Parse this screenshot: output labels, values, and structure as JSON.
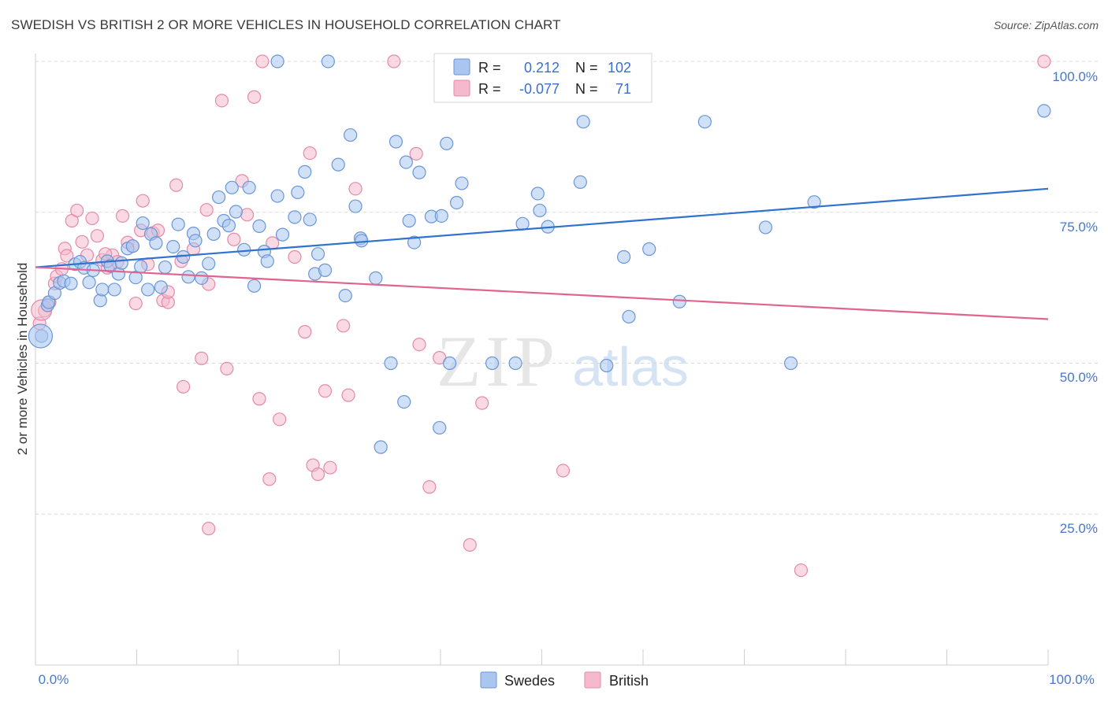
{
  "title": "SWEDISH VS BRITISH 2 OR MORE VEHICLES IN HOUSEHOLD CORRELATION CHART",
  "source": "Source: ZipAtlas.com",
  "colors": {
    "swedes_fill": "#aac6ef",
    "swedes_stroke": "#6a96d8",
    "swedes_line": "#2f72d0",
    "british_fill": "#f4b9cc",
    "british_stroke": "#e58aa8",
    "british_line": "#e0648f",
    "tick_color": "#4a78c9",
    "grid": "#d9d9d9"
  },
  "legend": {
    "r_label": "R =",
    "n_label": "N =",
    "swedes": {
      "r": "0.212",
      "n": "102"
    },
    "british": {
      "r": "-0.077",
      "n": "71"
    }
  },
  "bottom_legend": {
    "swedes": "Swedes",
    "british": "British"
  },
  "watermark": {
    "zip": "ZIP",
    "atlas": "atlas"
  },
  "chart_data": {
    "type": "scatter",
    "title": "SWEDISH VS BRITISH 2 OR MORE VEHICLES IN HOUSEHOLD CORRELATION CHART",
    "xlabel": "",
    "ylabel": "2 or more Vehicles in Household",
    "xlim": [
      0,
      100
    ],
    "ylim": [
      0,
      100
    ],
    "x_tick_labels": [
      "0.0%",
      "100.0%"
    ],
    "y_ticks": [
      25,
      50,
      75,
      100
    ],
    "y_tick_labels": [
      "25.0%",
      "50.0%",
      "75.0%",
      "100.0%"
    ],
    "grid": "horizontal dashed",
    "legend_position": "top-center",
    "series": [
      {
        "name": "Swedes",
        "r": 0.212,
        "n": 102,
        "trend": {
          "x": [
            0,
            100
          ],
          "y": [
            65.9,
            78.9
          ]
        },
        "points": [
          [
            0.6,
            54.5
          ],
          [
            1.2,
            59.6
          ],
          [
            1.3,
            60.1
          ],
          [
            1.9,
            61.6
          ],
          [
            2.4,
            63.3
          ],
          [
            2.8,
            63.6
          ],
          [
            3.5,
            63.2
          ],
          [
            3.9,
            66.4
          ],
          [
            4.4,
            66.8
          ],
          [
            4.8,
            65.8
          ],
          [
            5.3,
            63.4
          ],
          [
            5.7,
            65.4
          ],
          [
            6.4,
            60.4
          ],
          [
            6.6,
            62.2
          ],
          [
            7.1,
            66.9
          ],
          [
            7.4,
            66.1
          ],
          [
            7.8,
            62.2
          ],
          [
            8.2,
            64.8
          ],
          [
            8.5,
            66.6
          ],
          [
            9.1,
            69.0
          ],
          [
            9.6,
            69.4
          ],
          [
            9.9,
            64.2
          ],
          [
            10.4,
            66.0
          ],
          [
            10.6,
            73.2
          ],
          [
            11.1,
            62.2
          ],
          [
            11.4,
            71.4
          ],
          [
            11.9,
            69.9
          ],
          [
            12.4,
            62.6
          ],
          [
            12.8,
            65.9
          ],
          [
            13.6,
            69.3
          ],
          [
            14.1,
            73.0
          ],
          [
            14.6,
            67.6
          ],
          [
            15.1,
            64.3
          ],
          [
            15.6,
            71.5
          ],
          [
            15.8,
            70.3
          ],
          [
            16.4,
            64.1
          ],
          [
            17.1,
            66.5
          ],
          [
            17.6,
            71.4
          ],
          [
            18.1,
            77.5
          ],
          [
            18.6,
            73.6
          ],
          [
            19.1,
            72.8
          ],
          [
            19.4,
            79.1
          ],
          [
            19.8,
            75.1
          ],
          [
            20.6,
            68.8
          ],
          [
            21.1,
            79.1
          ],
          [
            21.6,
            62.8
          ],
          [
            22.1,
            72.7
          ],
          [
            22.6,
            68.5
          ],
          [
            22.9,
            66.9
          ],
          [
            23.9,
            77.7
          ],
          [
            24.4,
            71.3
          ],
          [
            25.6,
            74.2
          ],
          [
            25.9,
            78.3
          ],
          [
            26.6,
            81.7
          ],
          [
            27.1,
            73.8
          ],
          [
            27.6,
            64.8
          ],
          [
            27.9,
            68.1
          ],
          [
            28.6,
            65.4
          ],
          [
            29.9,
            82.9
          ],
          [
            30.6,
            61.2
          ],
          [
            31.1,
            87.8
          ],
          [
            31.6,
            76.0
          ],
          [
            32.1,
            70.7
          ],
          [
            32.2,
            70.3
          ],
          [
            33.6,
            64.1
          ],
          [
            34.1,
            36.1
          ],
          [
            35.1,
            50.0
          ],
          [
            35.6,
            86.7
          ],
          [
            36.4,
            43.6
          ],
          [
            36.6,
            83.3
          ],
          [
            36.9,
            73.6
          ],
          [
            37.4,
            70.0
          ],
          [
            37.9,
            81.6
          ],
          [
            39.1,
            74.3
          ],
          [
            39.9,
            39.3
          ],
          [
            40.1,
            74.4
          ],
          [
            40.6,
            86.4
          ],
          [
            40.9,
            50.0
          ],
          [
            41.6,
            76.6
          ],
          [
            42.1,
            79.8
          ],
          [
            42.9,
            94.3
          ],
          [
            45.1,
            50.0
          ],
          [
            47.4,
            50.0
          ],
          [
            48.1,
            73.1
          ],
          [
            49.6,
            78.1
          ],
          [
            49.8,
            75.3
          ],
          [
            50.6,
            72.6
          ],
          [
            53.8,
            80.0
          ],
          [
            54.1,
            90.0
          ],
          [
            56.4,
            49.6
          ],
          [
            58.1,
            67.6
          ],
          [
            58.6,
            57.7
          ],
          [
            60.6,
            68.9
          ],
          [
            63.6,
            60.2
          ],
          [
            66.1,
            90.0
          ],
          [
            72.1,
            72.5
          ],
          [
            74.6,
            50.0
          ],
          [
            76.9,
            76.7
          ],
          [
            23.9,
            100
          ],
          [
            28.9,
            100
          ],
          [
            99.6,
            91.8
          ],
          [
            56.6,
            100
          ]
        ]
      },
      {
        "name": "British",
        "r": -0.077,
        "n": 71,
        "trend": {
          "x": [
            0,
            100
          ],
          "y": [
            65.9,
            57.3
          ]
        },
        "points": [
          [
            0.4,
            56.6
          ],
          [
            0.9,
            58.7
          ],
          [
            1.4,
            60.1
          ],
          [
            1.9,
            63.2
          ],
          [
            2.1,
            64.4
          ],
          [
            2.6,
            65.6
          ],
          [
            2.9,
            69.0
          ],
          [
            3.1,
            67.8
          ],
          [
            3.6,
            73.6
          ],
          [
            4.1,
            75.3
          ],
          [
            4.6,
            70.1
          ],
          [
            5.1,
            67.9
          ],
          [
            5.6,
            74.0
          ],
          [
            6.1,
            71.1
          ],
          [
            6.6,
            67.1
          ],
          [
            7.1,
            65.8
          ],
          [
            7.6,
            67.9
          ],
          [
            8.1,
            66.8
          ],
          [
            8.6,
            74.4
          ],
          [
            9.1,
            70.0
          ],
          [
            9.6,
            69.4
          ],
          [
            9.9,
            59.9
          ],
          [
            10.4,
            72.0
          ],
          [
            10.6,
            76.9
          ],
          [
            11.1,
            66.4
          ],
          [
            11.6,
            71.6
          ],
          [
            12.1,
            72.0
          ],
          [
            12.6,
            60.4
          ],
          [
            13.1,
            60.1
          ],
          [
            13.9,
            79.5
          ],
          [
            14.4,
            66.9
          ],
          [
            14.6,
            46.1
          ],
          [
            15.6,
            68.9
          ],
          [
            16.4,
            50.8
          ],
          [
            16.9,
            75.4
          ],
          [
            17.1,
            63.1
          ],
          [
            18.4,
            93.5
          ],
          [
            18.9,
            49.1
          ],
          [
            20.4,
            80.2
          ],
          [
            20.9,
            74.6
          ],
          [
            21.6,
            94.1
          ],
          [
            22.1,
            44.1
          ],
          [
            22.4,
            100
          ],
          [
            23.1,
            30.8
          ],
          [
            23.4,
            69.9
          ],
          [
            24.1,
            40.7
          ],
          [
            25.6,
            67.6
          ],
          [
            26.6,
            55.2
          ],
          [
            27.1,
            84.8
          ],
          [
            27.4,
            33.1
          ],
          [
            27.9,
            31.6
          ],
          [
            28.6,
            45.4
          ],
          [
            29.1,
            32.7
          ],
          [
            30.4,
            56.2
          ],
          [
            30.9,
            44.7
          ],
          [
            31.6,
            78.9
          ],
          [
            35.4,
            100
          ],
          [
            37.6,
            84.7
          ],
          [
            37.9,
            53.1
          ],
          [
            38.9,
            29.5
          ],
          [
            39.9,
            50.9
          ],
          [
            42.9,
            19.9
          ],
          [
            44.1,
            43.4
          ],
          [
            47.4,
            100
          ],
          [
            52.1,
            32.2
          ],
          [
            75.6,
            15.7
          ],
          [
            99.6,
            100
          ],
          [
            17.1,
            22.6
          ],
          [
            13.1,
            61.8
          ],
          [
            6.9,
            68.1
          ],
          [
            19.6,
            70.5
          ]
        ]
      }
    ]
  }
}
